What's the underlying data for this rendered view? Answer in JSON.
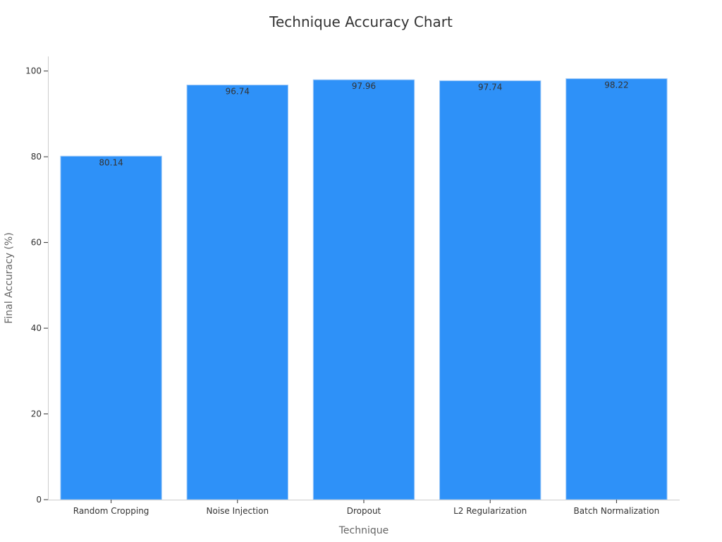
{
  "chart_data": {
    "type": "bar",
    "title": "Technique Accuracy Chart",
    "xlabel": "Technique",
    "ylabel": "Final Accuracy (%)",
    "categories": [
      "Random Cropping",
      "Noise Injection",
      "Dropout",
      "L2 Regularization",
      "Batch Normalization"
    ],
    "values": [
      80.14,
      96.74,
      97.96,
      97.74,
      98.22
    ],
    "data_labels": [
      "80.14",
      "96.74",
      "97.96",
      "97.74",
      "98.22"
    ],
    "ylim": [
      0,
      103.4
    ],
    "yticks": [
      0,
      20,
      40,
      60,
      80,
      100
    ],
    "grid": false,
    "legend": "none",
    "bar_color": "#2e91f8",
    "bar_edge_color": "#9ec9f7"
  }
}
